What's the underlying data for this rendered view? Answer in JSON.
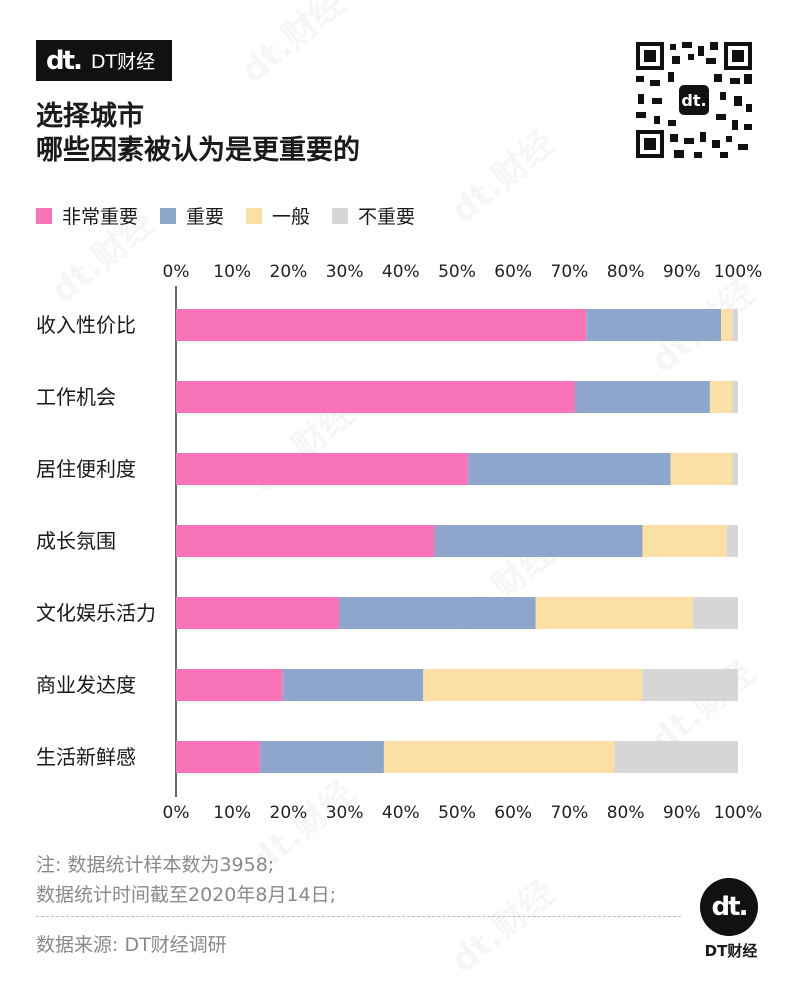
{
  "brand": {
    "logo_text": "dt.",
    "name": "DT财经"
  },
  "title": {
    "line1": "选择城市",
    "line2": "哪些因素被认为是更重要的"
  },
  "watermark_text": "dt.财经",
  "colors": {
    "very_important": "#f973b9",
    "important": "#8fa6cc",
    "average": "#fbe0a6",
    "not_important": "#d6d6d6"
  },
  "chart_data": {
    "type": "bar",
    "orientation": "horizontal",
    "stacked": true,
    "categories": [
      "收入性价比",
      "工作机会",
      "居住便利度",
      "成长氛围",
      "文化娱乐活力",
      "商业发达度",
      "生活新鲜感"
    ],
    "series": [
      {
        "name": "非常重要",
        "color": "#f973b9",
        "values": [
          73,
          71,
          52,
          46,
          29,
          19,
          15
        ]
      },
      {
        "name": "重要",
        "color": "#8fa6cc",
        "values": [
          24,
          24,
          36,
          37,
          35,
          25,
          22
        ]
      },
      {
        "name": "一般",
        "color": "#fbe0a6",
        "values": [
          2,
          4,
          11,
          15,
          28,
          39,
          41
        ]
      },
      {
        "name": "不重要",
        "color": "#d6d6d6",
        "values": [
          1,
          1,
          1,
          2,
          8,
          17,
          22
        ]
      }
    ],
    "xlim": [
      0,
      100
    ],
    "x_ticks": [
      "0%",
      "10%",
      "20%",
      "30%",
      "40%",
      "50%",
      "60%",
      "70%",
      "80%",
      "90%",
      "100%"
    ],
    "legend_position": "top-left",
    "grid": false
  },
  "footnote": {
    "line1": "注: 数据统计样本数为3958;",
    "line2": "数据统计时间截至2020年8月14日;"
  },
  "source": "数据来源: DT财经调研"
}
